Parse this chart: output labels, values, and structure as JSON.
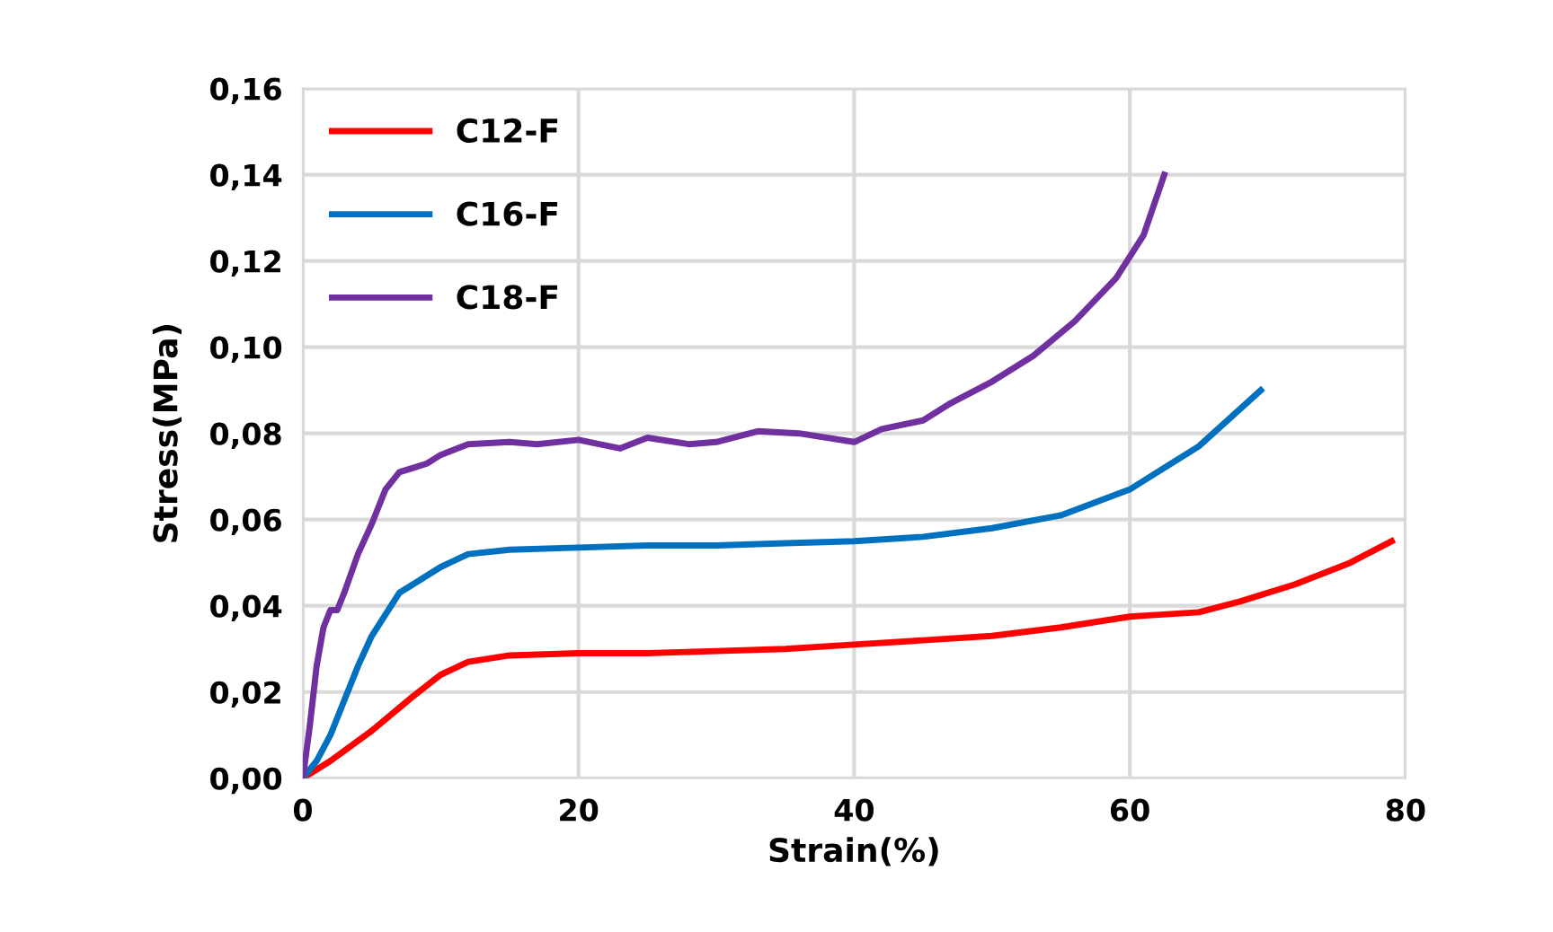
{
  "chart_data": {
    "type": "line",
    "xlabel": "Strain(%)",
    "ylabel": "Stress(MPa)",
    "xlim": [
      0,
      80
    ],
    "xticks": [
      0,
      20,
      40,
      60,
      80
    ],
    "ylim": [
      0,
      0.16
    ],
    "yticks": [
      {
        "value": 0,
        "label": "0,00"
      },
      {
        "value": 0.02,
        "label": "0,02"
      },
      {
        "value": 0.04,
        "label": "0,04"
      },
      {
        "value": 0.06,
        "label": "0,06"
      },
      {
        "value": 0.08,
        "label": "0,08"
      },
      {
        "value": 0.1,
        "label": "0,10"
      },
      {
        "value": 0.12,
        "label": "0,12"
      },
      {
        "value": 0.14,
        "label": "0,14"
      },
      {
        "value": 0.16,
        "label": "0,16"
      }
    ],
    "grid": true,
    "legend": "top left",
    "marker": "none",
    "line_style": "solid",
    "series": [
      {
        "name": "C12-F",
        "color": "#ff0000",
        "x": [
          0,
          2,
          5,
          8,
          10,
          12,
          15,
          20,
          25,
          30,
          35,
          40,
          45,
          50,
          55,
          60,
          65,
          68,
          72,
          76,
          79
        ],
        "values": [
          0,
          0.004,
          0.011,
          0.019,
          0.024,
          0.027,
          0.0285,
          0.029,
          0.029,
          0.0295,
          0.03,
          0.031,
          0.032,
          0.033,
          0.035,
          0.0375,
          0.0385,
          0.041,
          0.045,
          0.05,
          0.055
        ]
      },
      {
        "name": "C16-F",
        "color": "#0070c0",
        "x": [
          0,
          1,
          2,
          3,
          4,
          5,
          6,
          7,
          8,
          10,
          12,
          15,
          20,
          25,
          30,
          35,
          40,
          45,
          50,
          55,
          60,
          65,
          69.5
        ],
        "values": [
          0,
          0.004,
          0.01,
          0.018,
          0.026,
          0.033,
          0.038,
          0.043,
          0.045,
          0.049,
          0.052,
          0.053,
          0.0535,
          0.054,
          0.054,
          0.0545,
          0.055,
          0.056,
          0.058,
          0.061,
          0.067,
          0.077,
          0.09
        ]
      },
      {
        "name": "C18-F",
        "color": "#7030a0",
        "x": [
          0,
          0.5,
          1,
          1.5,
          2,
          2.5,
          3,
          4,
          5,
          6,
          7,
          8,
          9,
          10,
          12,
          15,
          17,
          20,
          23,
          25,
          28,
          30,
          33,
          36,
          40,
          42,
          45,
          47,
          50,
          53,
          56,
          59,
          61,
          62.5
        ],
        "values": [
          0,
          0.012,
          0.026,
          0.035,
          0.039,
          0.039,
          0.043,
          0.052,
          0.059,
          0.067,
          0.071,
          0.072,
          0.073,
          0.075,
          0.0775,
          0.078,
          0.0775,
          0.0785,
          0.0765,
          0.079,
          0.0775,
          0.078,
          0.0805,
          0.08,
          0.078,
          0.081,
          0.083,
          0.087,
          0.092,
          0.098,
          0.106,
          0.116,
          0.126,
          0.14
        ]
      }
    ]
  }
}
